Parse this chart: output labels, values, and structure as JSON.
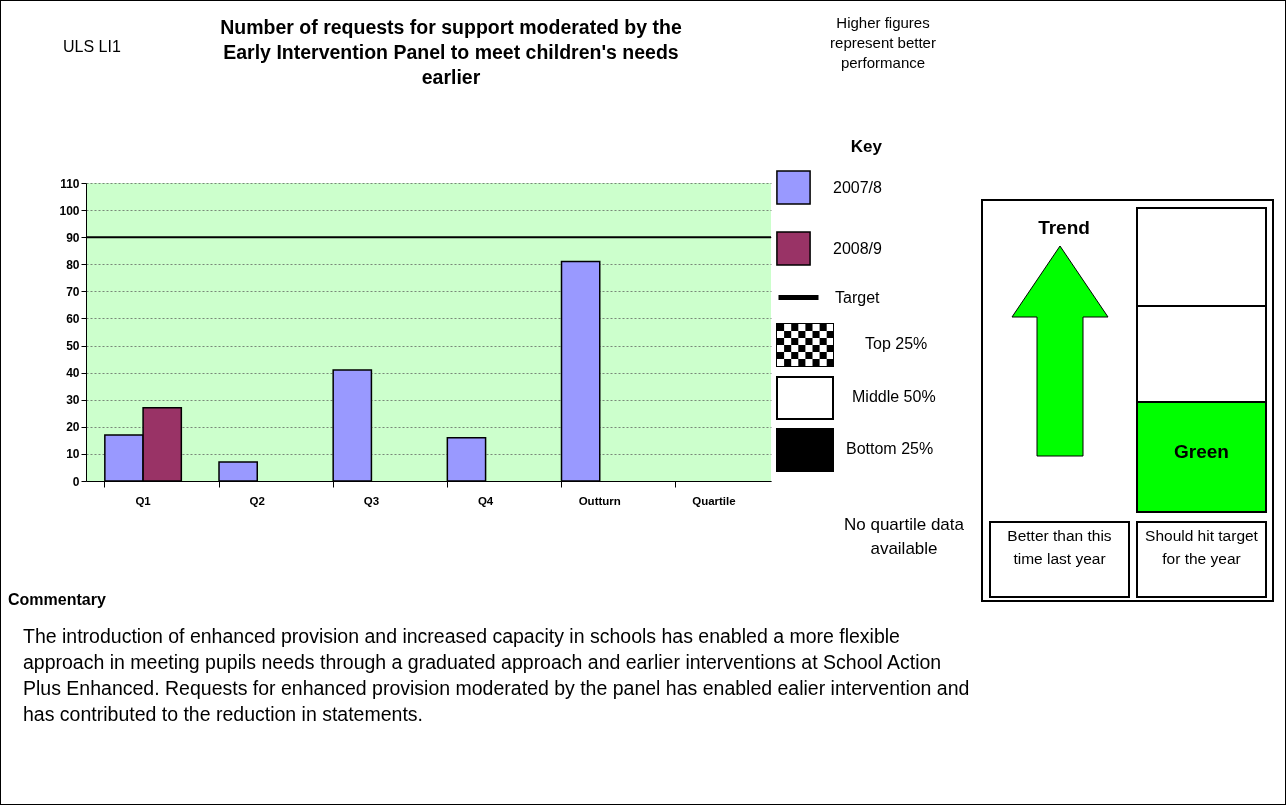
{
  "chart_data": {
    "type": "bar",
    "title": "Number of requests for support moderated by the Early Intervention Panel to meet children's needs earlier",
    "categories": [
      "Q1",
      "Q2",
      "Q3",
      "Q4",
      "Outturn",
      "Quartile"
    ],
    "series": [
      {
        "name": "2007/8",
        "color": "#9999ff",
        "values": [
          17,
          7,
          41,
          16,
          81,
          null
        ]
      },
      {
        "name": "2008/9",
        "color": "#993366",
        "values": [
          27,
          null,
          null,
          null,
          null,
          null
        ]
      }
    ],
    "ylim": [
      0,
      110
    ],
    "yticks": [
      0,
      10,
      20,
      30,
      40,
      50,
      60,
      70,
      80,
      90,
      100,
      110
    ],
    "grid": "y",
    "legend": "right",
    "legend_title": "Key",
    "ref_lines": [
      {
        "axis": "y",
        "value": 90,
        "label": "Target",
        "color": "#000000"
      }
    ],
    "annotations": [
      "ULS LI1",
      "Higher figures represent better performance",
      "Top 25%",
      "Middle 50%",
      "Bottom 25%",
      "No quartile data available",
      "Trend",
      "Green",
      "Better than this time last year",
      "Should hit target for the year",
      "Commentary",
      "The introduction of enhanced provision and increased capacity in schools has enabled a more flexible approach in meeting pupils needs through a graduated approach and earlier interventions at School Action Plus Enhanced.  Requests for enhanced provision moderated by the panel has enabled ealier intervention and has contributed to the reduction in statements."
    ]
  }
}
